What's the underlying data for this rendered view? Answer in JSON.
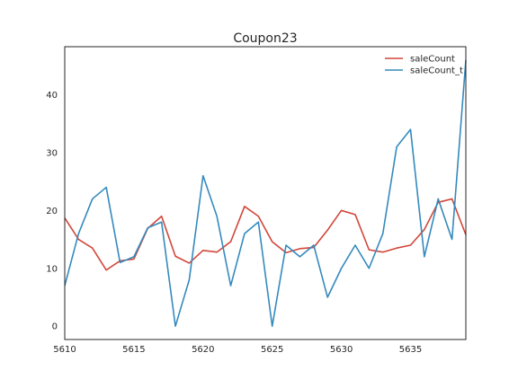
{
  "chart_data": {
    "type": "line",
    "title": "Coupon23",
    "xlabel": "",
    "ylabel": "",
    "xlim": [
      5610,
      5639
    ],
    "ylim": [
      -2.3,
      48.3
    ],
    "xticks": [
      5610,
      5615,
      5620,
      5625,
      5630,
      5635
    ],
    "yticks": [
      0,
      10,
      20,
      30,
      40
    ],
    "grid": false,
    "legend_position": "top-right",
    "x": [
      5610,
      5611,
      5612,
      5613,
      5614,
      5615,
      5616,
      5617,
      5618,
      5619,
      5620,
      5621,
      5622,
      5623,
      5624,
      5625,
      5626,
      5627,
      5628,
      5629,
      5630,
      5631,
      5632,
      5633,
      5634,
      5635,
      5636,
      5637,
      5638,
      5639
    ],
    "series": [
      {
        "name": "saleCount",
        "color": "#d0473a",
        "values": [
          18.7,
          15.0,
          13.5,
          9.7,
          11.3,
          11.6,
          16.9,
          19.0,
          12.1,
          10.9,
          13.1,
          12.8,
          14.6,
          20.7,
          19.0,
          14.6,
          12.7,
          13.4,
          13.6,
          16.6,
          20.0,
          19.3,
          13.2,
          12.8,
          13.5,
          14.0,
          16.7,
          21.4,
          22.0,
          15.8
        ]
      },
      {
        "name": "saleCount_t",
        "color": "#348abd",
        "values": [
          7,
          16,
          22,
          24,
          11,
          12,
          17,
          18,
          0,
          8,
          26,
          19,
          7,
          16,
          18,
          0,
          14,
          12,
          14,
          5,
          10,
          14,
          10,
          16,
          31,
          34,
          12,
          22,
          15,
          46
        ]
      }
    ]
  }
}
